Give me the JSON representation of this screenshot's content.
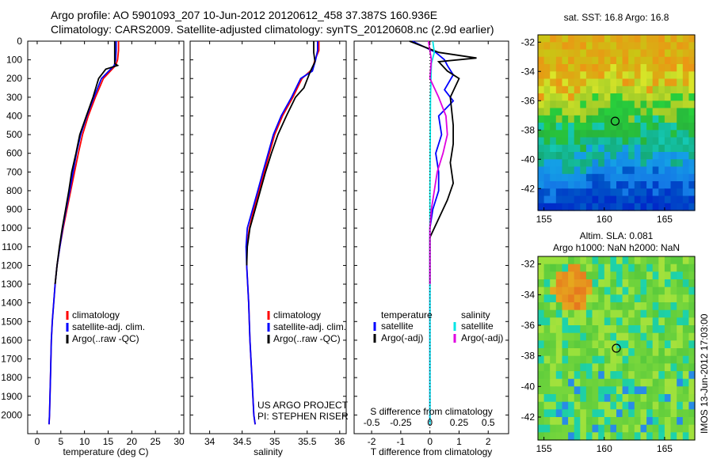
{
  "header": {
    "title_line1": "Argo profile: AO 5901093_207 10-Jun-2012 20120612_458 37.387S 160.936E",
    "title_line2": "Climatology: CARS2009. Satellite-adjusted climatology: synTS_20120608.nc (2.9d earlier)"
  },
  "depth_ticks": [
    0,
    100,
    200,
    300,
    400,
    500,
    600,
    700,
    800,
    900,
    1000,
    1100,
    1200,
    1300,
    1400,
    1500,
    1600,
    1700,
    1800,
    1900,
    2000
  ],
  "colors": {
    "climatology": "#ff0000",
    "satellite": "#0000ff",
    "argo": "#000000",
    "salinity_sat": "#00e5e5",
    "salinity_argo": "#e000e0"
  },
  "chart_data": [
    {
      "type": "line",
      "id": "temperature",
      "xlabel": "temperature (deg C)",
      "xlim": [
        -2,
        31
      ],
      "ylim": [
        2100,
        0
      ],
      "xticks": [
        0,
        5,
        10,
        15,
        20,
        25,
        30
      ],
      "legend": [
        "climatology",
        "satellite-adj. clim.",
        "Argo(..raw -QC)"
      ],
      "series": [
        {
          "name": "climatology",
          "color": "#ff0000",
          "points": [
            [
              17.2,
              0
            ],
            [
              17.2,
              50
            ],
            [
              17.0,
              100
            ],
            [
              16.6,
              130
            ],
            [
              14,
              200
            ],
            [
              12.3,
              300
            ],
            [
              10.8,
              400
            ],
            [
              9.6,
              500
            ],
            [
              8.7,
              600
            ],
            [
              7.9,
              700
            ],
            [
              7.1,
              800
            ],
            [
              6.3,
              900
            ],
            [
              5.5,
              1000
            ],
            [
              4.8,
              1100
            ],
            [
              4.2,
              1200
            ],
            [
              3.8,
              1300
            ],
            [
              3.5,
              1400
            ],
            [
              3.2,
              1500
            ],
            [
              3.0,
              1600
            ],
            [
              2.8,
              1800
            ],
            [
              2.6,
              2000
            ],
            [
              2.5,
              2050
            ]
          ]
        },
        {
          "name": "satellite-adj. clim.",
          "color": "#0000ff",
          "points": [
            [
              16.7,
              0
            ],
            [
              16.7,
              50
            ],
            [
              16.6,
              100
            ],
            [
              16.3,
              130
            ],
            [
              13.6,
              200
            ],
            [
              12.0,
              300
            ],
            [
              10.5,
              400
            ],
            [
              9.2,
              500
            ],
            [
              8.3,
              600
            ],
            [
              7.6,
              700
            ],
            [
              6.9,
              800
            ],
            [
              6.1,
              900
            ],
            [
              5.4,
              1000
            ],
            [
              4.8,
              1100
            ],
            [
              4.2,
              1200
            ],
            [
              3.8,
              1300
            ],
            [
              3.5,
              1400
            ],
            [
              3.2,
              1500
            ],
            [
              3.0,
              1600
            ],
            [
              2.8,
              1800
            ],
            [
              2.6,
              2000
            ],
            [
              2.5,
              2050
            ]
          ]
        },
        {
          "name": "Argo(..raw -QC)",
          "color": "#000000",
          "points": [
            [
              16.4,
              0
            ],
            [
              16.4,
              50
            ],
            [
              16.4,
              120
            ],
            [
              17.0,
              130
            ],
            [
              14.5,
              150
            ],
            [
              13.0,
              200
            ],
            [
              11.8,
              300
            ],
            [
              10.4,
              400
            ],
            [
              9.0,
              500
            ],
            [
              8.2,
              600
            ],
            [
              7.3,
              700
            ],
            [
              6.7,
              800
            ],
            [
              6.0,
              900
            ],
            [
              5.3,
              1000
            ],
            [
              4.7,
              1100
            ],
            [
              4.2,
              1200
            ],
            [
              3.8,
              1300
            ]
          ]
        }
      ]
    },
    {
      "type": "line",
      "id": "salinity",
      "xlabel": "salinity",
      "xlim": [
        33.7,
        36.1
      ],
      "ylim": [
        2100,
        0
      ],
      "xticks": [
        34,
        34.5,
        35,
        35.5,
        36
      ],
      "xtick_labels": [
        "34",
        "34.5",
        "35",
        "35.5",
        "36"
      ],
      "legend": [
        "climatology",
        "satellite-adj. clim.",
        "Argo(..raw -QC)"
      ],
      "annotation": [
        "US ARGO PROJECT",
        "PI: STEPHEN RISER"
      ],
      "series": [
        {
          "name": "climatology",
          "color": "#ff0000",
          "points": [
            [
              35.68,
              0
            ],
            [
              35.68,
              50
            ],
            [
              35.62,
              100
            ],
            [
              35.58,
              150
            ],
            [
              35.42,
              200
            ],
            [
              35.28,
              300
            ],
            [
              35.12,
              400
            ],
            [
              35.0,
              500
            ],
            [
              34.92,
              600
            ],
            [
              34.84,
              700
            ],
            [
              34.76,
              800
            ],
            [
              34.68,
              900
            ],
            [
              34.61,
              1000
            ],
            [
              34.57,
              1100
            ],
            [
              34.57,
              1200
            ],
            [
              34.6,
              1400
            ],
            [
              34.62,
              1600
            ],
            [
              34.65,
              1800
            ],
            [
              34.68,
              2000
            ],
            [
              34.7,
              2050
            ]
          ]
        },
        {
          "name": "satellite-adj. clim.",
          "color": "#0000ff",
          "points": [
            [
              35.66,
              0
            ],
            [
              35.66,
              50
            ],
            [
              35.63,
              100
            ],
            [
              35.58,
              160
            ],
            [
              35.4,
              200
            ],
            [
              35.26,
              300
            ],
            [
              35.1,
              400
            ],
            [
              34.98,
              500
            ],
            [
              34.9,
              600
            ],
            [
              34.82,
              700
            ],
            [
              34.74,
              800
            ],
            [
              34.66,
              900
            ],
            [
              34.58,
              1000
            ],
            [
              34.56,
              1100
            ],
            [
              34.57,
              1200
            ],
            [
              34.6,
              1400
            ],
            [
              34.62,
              1600
            ],
            [
              34.65,
              1800
            ],
            [
              34.68,
              2000
            ],
            [
              34.7,
              2050
            ]
          ]
        },
        {
          "name": "Argo(..raw -QC)",
          "color": "#000000",
          "points": [
            [
              35.6,
              0
            ],
            [
              35.6,
              60
            ],
            [
              35.62,
              110
            ],
            [
              35.55,
              160
            ],
            [
              35.45,
              250
            ],
            [
              35.32,
              300
            ],
            [
              35.18,
              400
            ],
            [
              35.05,
              500
            ],
            [
              34.95,
              600
            ],
            [
              34.86,
              700
            ],
            [
              34.78,
              800
            ],
            [
              34.7,
              900
            ],
            [
              34.62,
              1000
            ],
            [
              34.58,
              1100
            ],
            [
              34.57,
              1200
            ]
          ]
        }
      ]
    },
    {
      "type": "line",
      "id": "difference",
      "xlabel": "T difference from climatology",
      "xlabel_top": "S difference from climatology",
      "xlim": [
        -2.6,
        2.7
      ],
      "ylim": [
        2100,
        0
      ],
      "xticks": [
        -2,
        -1,
        0,
        1,
        2
      ],
      "xticks_s": [
        -0.5,
        -0.25,
        0,
        0.25,
        0.5
      ],
      "xticks_s_labels": [
        "-0.5",
        "-0.25",
        "0",
        "0.25",
        "0.5"
      ],
      "legend_headers": [
        "temperature",
        "salinity"
      ],
      "legend": [
        "satellite",
        "Argo(-adj)",
        "satellite",
        "Argo(-adj)"
      ],
      "series": [
        {
          "name": "temperature satellite",
          "color": "#0000ff",
          "points": [
            [
              -0.6,
              0
            ],
            [
              0.2,
              60
            ],
            [
              0.5,
              100
            ],
            [
              0.6,
              130
            ],
            [
              0.8,
              180
            ],
            [
              0.5,
              260
            ],
            [
              0.8,
              320
            ],
            [
              0.3,
              400
            ],
            [
              0.4,
              500
            ],
            [
              0.2,
              600
            ],
            [
              0.3,
              700
            ],
            [
              0.3,
              800
            ],
            [
              0.1,
              900
            ],
            [
              0.0,
              1000
            ],
            [
              0.0,
              1200
            ],
            [
              0.0,
              2050
            ]
          ]
        },
        {
          "name": "temperature Argo(-adj)",
          "color": "#000000",
          "points": [
            [
              -0.7,
              0
            ],
            [
              0.3,
              60
            ],
            [
              1.6,
              90
            ],
            [
              0.3,
              110
            ],
            [
              0.6,
              160
            ],
            [
              1.0,
              200
            ],
            [
              0.7,
              300
            ],
            [
              0.8,
              450
            ],
            [
              0.8,
              550
            ],
            [
              0.7,
              650
            ],
            [
              0.8,
              760
            ],
            [
              0.6,
              850
            ],
            [
              0.3,
              950
            ],
            [
              0.0,
              1050
            ],
            [
              0.0,
              1300
            ]
          ]
        },
        {
          "name": "salinity satellite",
          "color": "#00e5e5",
          "points": [
            [
              0.1,
              0
            ],
            [
              0.15,
              60
            ],
            [
              0.05,
              120
            ],
            [
              0.02,
              300
            ],
            [
              0.0,
              800
            ],
            [
              0.0,
              2050
            ]
          ]
        },
        {
          "name": "salinity Argo(-adj)",
          "color": "#e000e0",
          "points": [
            [
              -0.05,
              0
            ],
            [
              0.05,
              100
            ],
            [
              0.0,
              200
            ],
            [
              0.3,
              300
            ],
            [
              0.55,
              400
            ],
            [
              0.6,
              500
            ],
            [
              0.45,
              600
            ],
            [
              0.25,
              700
            ],
            [
              0.15,
              800
            ],
            [
              0.05,
              900
            ],
            [
              0.0,
              1000
            ],
            [
              0.0,
              1300
            ]
          ]
        }
      ]
    },
    {
      "type": "heatmap",
      "id": "sst-map",
      "title": "sat. SST: 16.8 Argo: 16.8",
      "xticks": [
        155,
        160,
        165
      ],
      "yticks": [
        -32,
        -34,
        -36,
        -38,
        -40,
        -42
      ],
      "yticks_labels": [
        "-32",
        "-34",
        "-36",
        "-38",
        "-40",
        "-42"
      ],
      "xlim": [
        154.5,
        167.5
      ],
      "ylim": [
        -43.5,
        -31.5
      ],
      "marker": [
        160.9,
        -37.4
      ]
    },
    {
      "type": "heatmap",
      "id": "sla-map",
      "title_line1": "Altim. SLA: 0.081",
      "title_line2": "Argo h1000: NaN h2000: NaN",
      "xticks": [
        155,
        160,
        165
      ],
      "yticks": [
        -32,
        -34,
        -36,
        -38,
        -40,
        -42
      ],
      "yticks_labels": [
        "-32",
        "-34",
        "-36",
        "-38",
        "-40",
        "-42"
      ],
      "xlim": [
        154.5,
        167.5
      ],
      "ylim": [
        -43.5,
        -31.5
      ],
      "marker": [
        161.0,
        -37.5
      ],
      "side_label": "IMOS 13-Jun-2012 17:03:00"
    }
  ]
}
